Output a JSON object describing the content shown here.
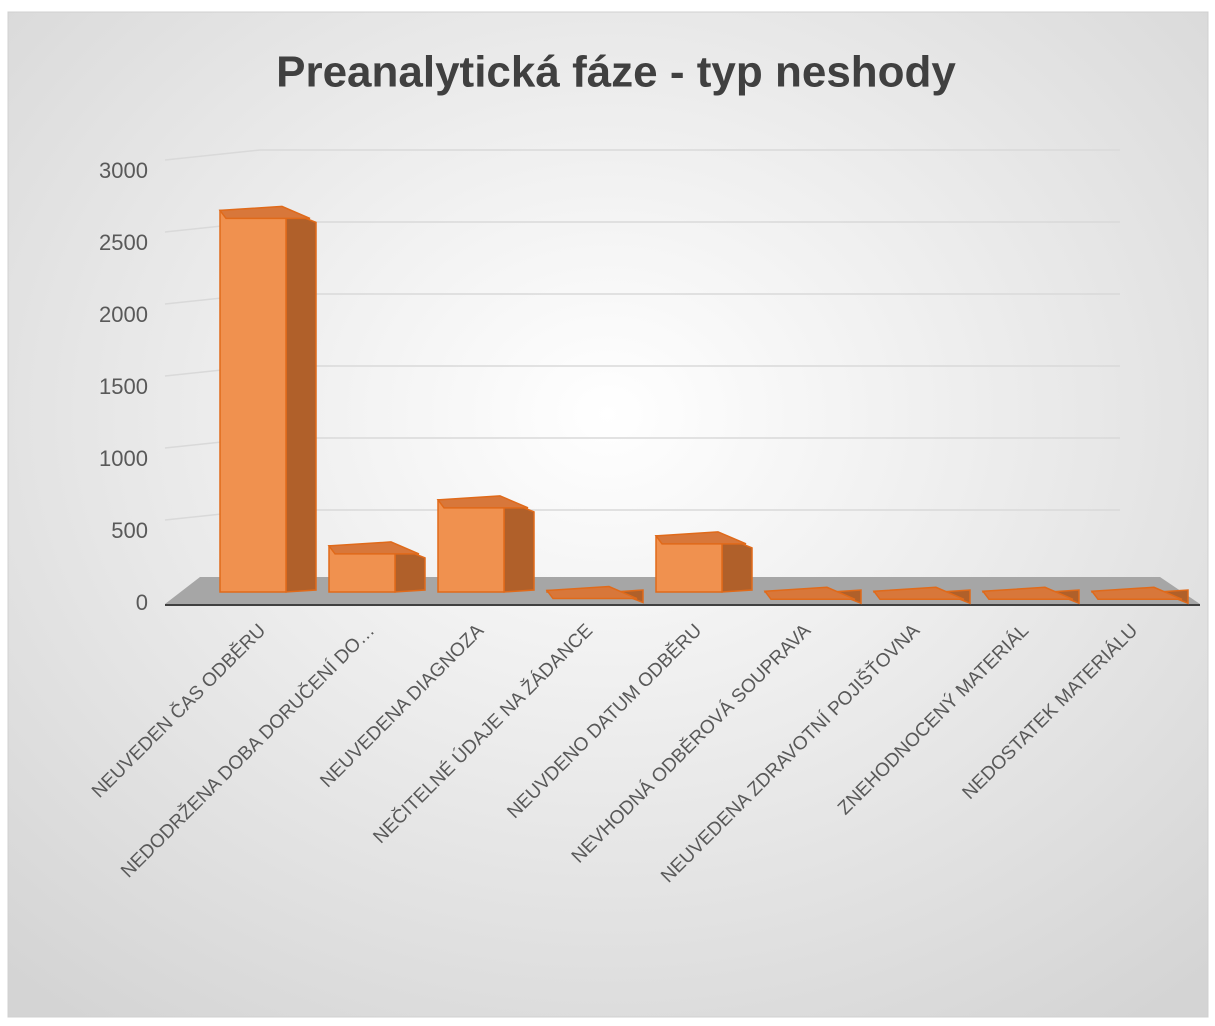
{
  "chart_data": {
    "type": "bar3d",
    "title": "Preanalytická fáze - typ neshody",
    "categories": [
      "NEUVEDEN ČAS ODBĚRU",
      "NEDODRŽENA DOBA DORUČENÍ DO…",
      "NEUVEDENA DIAGNOZA",
      "NEČITELNÉ ÚDAJE NA ŽÁDANCE",
      "NEUVDENO DATUM ODBĚRU",
      "NEVHODNÁ ODBĚROVÁ SOUPRAVA",
      "NEUVEDENA ZDRAVOTNÍ POJIŠŤOVNA",
      "ZNEHODNOCENÝ MATERIÁL",
      "NEDOSTATEK MATERIÁLU"
    ],
    "values": [
      2650,
      320,
      640,
      10,
      390,
      5,
      5,
      5,
      5
    ],
    "color": "#f0914f",
    "ylim": [
      0,
      3000
    ],
    "yticks": [
      0,
      500,
      1000,
      1500,
      2000,
      2500,
      3000
    ],
    "grid": true
  }
}
